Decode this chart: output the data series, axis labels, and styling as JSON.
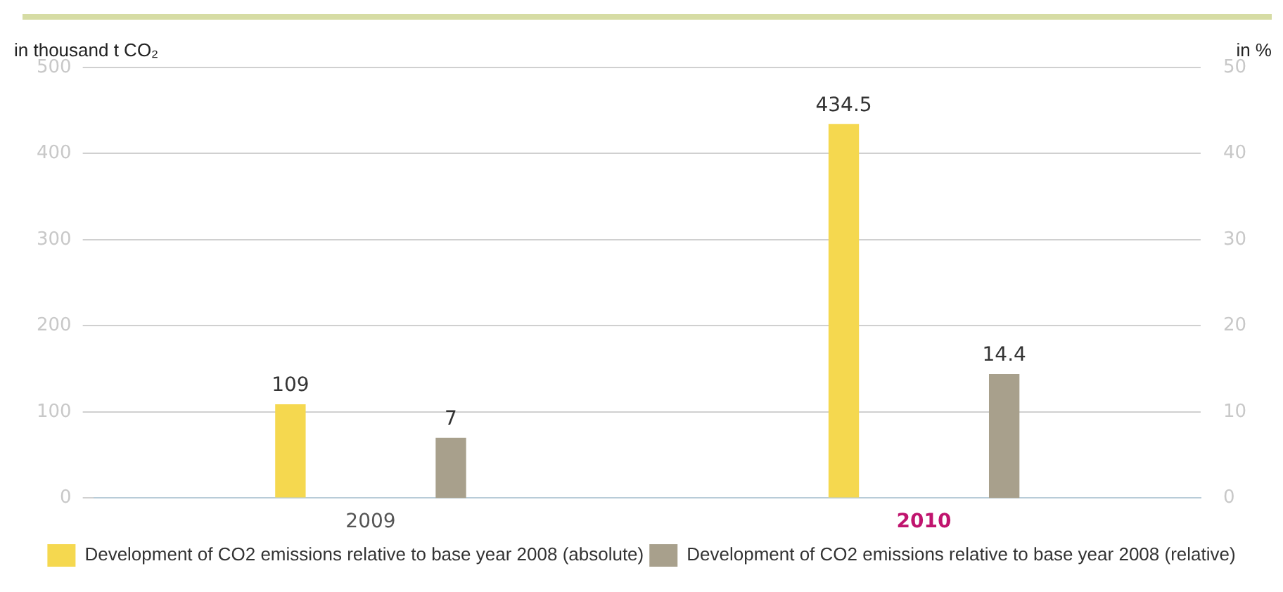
{
  "chart_data": {
    "type": "bar",
    "ylabel": "in thousand t CO₂",
    "y2label": "in %",
    "categories": [
      "2009",
      "2010"
    ],
    "series": [
      {
        "name": "Development of CO2 emissions relative to base year 2008 (absolute)",
        "color": "#f5d84f",
        "values": [
          109,
          434.5
        ]
      },
      {
        "name": "Development of CO2 emissions relative to base year 2008 (relative)",
        "color": "#a8a08c",
        "values": [
          7,
          14.4
        ],
        "axis": "y2"
      }
    ],
    "ylim": [
      0,
      500
    ],
    "yticks": [
      0,
      100,
      200,
      300,
      400,
      500
    ],
    "y2lim": [
      0,
      50
    ],
    "y2ticks": [
      0,
      10,
      20,
      30,
      40,
      50
    ],
    "grid": "y",
    "legend": "bottom",
    "data_labels": true
  }
}
